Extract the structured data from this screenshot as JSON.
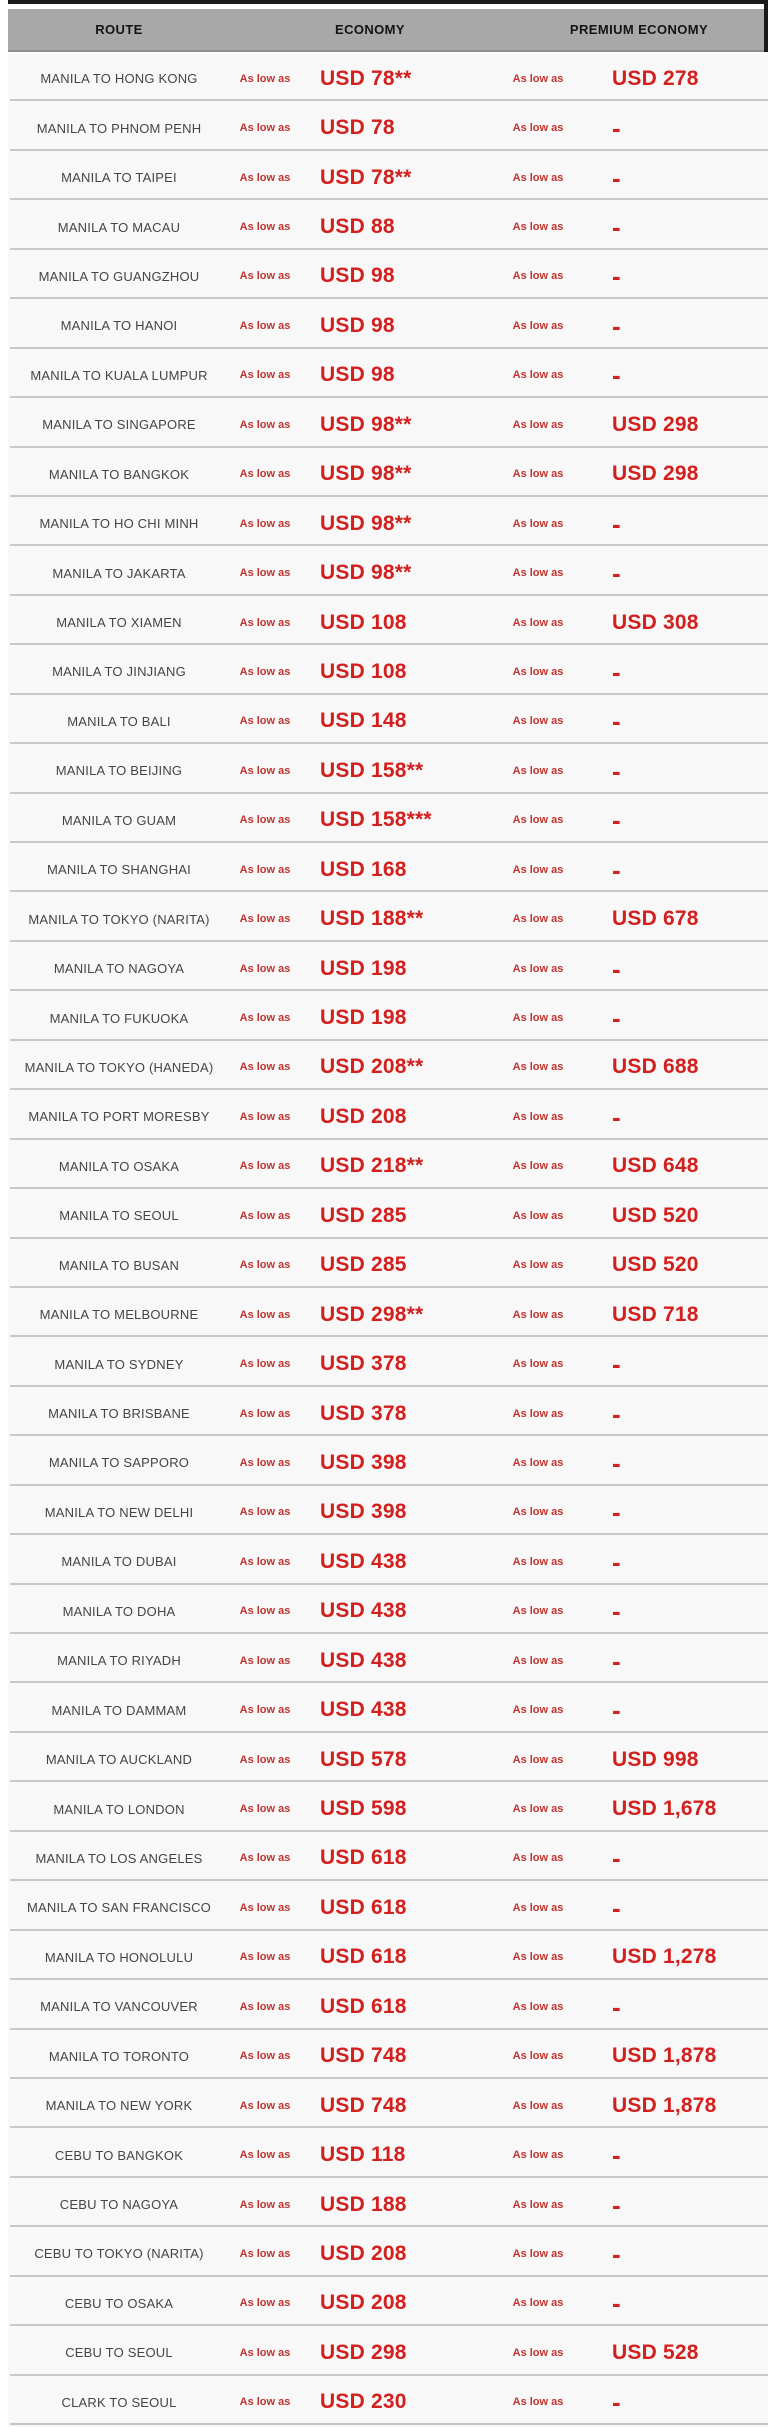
{
  "labels": {
    "as_low_as": "As low as",
    "no_fare_dash": "-"
  },
  "colors": {
    "header_background": "#a8a8a8",
    "header_text": "#141414",
    "row_background": "#f8f8f8",
    "divider": "#c8c8c8",
    "route_text": "#454545",
    "price_red": "#d2201e",
    "label_red": "#c0342f",
    "border_black": "#1a1a1a"
  },
  "table": {
    "headers": [
      "ROUTE",
      "ECONOMY",
      "PREMIUM ECONOMY"
    ],
    "rows": [
      {
        "route": "MANILA TO HONG KONG",
        "economy": "USD 78**",
        "premium": "USD 278"
      },
      {
        "route": "MANILA TO PHNOM PENH",
        "economy": "USD 78",
        "premium": "-"
      },
      {
        "route": "MANILA TO TAIPEI",
        "economy": "USD 78**",
        "premium": "-"
      },
      {
        "route": "MANILA TO MACAU",
        "economy": "USD 88",
        "premium": "-"
      },
      {
        "route": "MANILA TO GUANGZHOU",
        "economy": "USD 98",
        "premium": "-"
      },
      {
        "route": "MANILA TO HANOI",
        "economy": "USD 98",
        "premium": "-"
      },
      {
        "route": "MANILA TO KUALA LUMPUR",
        "economy": "USD 98",
        "premium": "-"
      },
      {
        "route": "MANILA TO SINGAPORE",
        "economy": "USD 98**",
        "premium": "USD 298"
      },
      {
        "route": "MANILA TO BANGKOK",
        "economy": "USD 98**",
        "premium": "USD 298"
      },
      {
        "route": "MANILA TO HO CHI MINH",
        "economy": "USD 98**",
        "premium": "-"
      },
      {
        "route": "MANILA TO JAKARTA",
        "economy": "USD 98**",
        "premium": "-"
      },
      {
        "route": "MANILA TO XIAMEN",
        "economy": "USD 108",
        "premium": "USD 308"
      },
      {
        "route": "MANILA TO JINJIANG",
        "economy": "USD 108",
        "premium": "-"
      },
      {
        "route": "MANILA TO BALI",
        "economy": "USD 148",
        "premium": "-"
      },
      {
        "route": "MANILA TO BEIJING",
        "economy": "USD 158**",
        "premium": "-"
      },
      {
        "route": "MANILA TO GUAM",
        "economy": "USD 158***",
        "premium": "-"
      },
      {
        "route": "MANILA TO SHANGHAI",
        "economy": "USD 168",
        "premium": "-"
      },
      {
        "route": "MANILA TO TOKYO (NARITA)",
        "economy": "USD 188**",
        "premium": "USD 678"
      },
      {
        "route": "MANILA TO NAGOYA",
        "economy": "USD 198",
        "premium": "-"
      },
      {
        "route": "MANILA TO FUKUOKA",
        "economy": "USD 198",
        "premium": "-"
      },
      {
        "route": "MANILA TO TOKYO (HANEDA)",
        "economy": "USD 208**",
        "premium": "USD 688"
      },
      {
        "route": "MANILA TO PORT MORESBY",
        "economy": "USD 208",
        "premium": "-"
      },
      {
        "route": "MANILA TO OSAKA",
        "economy": "USD 218**",
        "premium": "USD 648"
      },
      {
        "route": "MANILA TO SEOUL",
        "economy": "USD 285",
        "premium": "USD 520"
      },
      {
        "route": "MANILA TO BUSAN",
        "economy": "USD 285",
        "premium": "USD 520"
      },
      {
        "route": "MANILA TO MELBOURNE",
        "economy": "USD 298**",
        "premium": "USD 718"
      },
      {
        "route": "MANILA TO SYDNEY",
        "economy": "USD 378",
        "premium": "-"
      },
      {
        "route": "MANILA TO BRISBANE",
        "economy": "USD 378",
        "premium": "-"
      },
      {
        "route": "MANILA TO SAPPORO",
        "economy": "USD 398",
        "premium": "-"
      },
      {
        "route": "MANILA TO NEW DELHI",
        "economy": "USD 398",
        "premium": "-"
      },
      {
        "route": "MANILA TO DUBAI",
        "economy": "USD 438",
        "premium": "-"
      },
      {
        "route": "MANILA TO DOHA",
        "economy": "USD 438",
        "premium": "-"
      },
      {
        "route": "MANILA TO RIYADH",
        "economy": "USD 438",
        "premium": "-"
      },
      {
        "route": "MANILA TO DAMMAM",
        "economy": "USD 438",
        "premium": "-"
      },
      {
        "route": "MANILA TO AUCKLAND",
        "economy": "USD 578",
        "premium": "USD 998"
      },
      {
        "route": "MANILA TO LONDON",
        "economy": "USD 598",
        "premium": "USD 1,678"
      },
      {
        "route": "MANILA TO LOS ANGELES",
        "economy": "USD 618",
        "premium": "-"
      },
      {
        "route": "MANILA TO SAN FRANCISCO",
        "economy": "USD 618",
        "premium": "-"
      },
      {
        "route": "MANILA TO HONOLULU",
        "economy": "USD 618",
        "premium": "USD 1,278"
      },
      {
        "route": "MANILA TO VANCOUVER",
        "economy": "USD 618",
        "premium": "-"
      },
      {
        "route": "MANILA TO TORONTO",
        "economy": "USD 748",
        "premium": "USD 1,878"
      },
      {
        "route": "MANILA TO NEW YORK",
        "economy": "USD 748",
        "premium": "USD 1,878"
      },
      {
        "route": "CEBU TO BANGKOK",
        "economy": "USD 118",
        "premium": "-"
      },
      {
        "route": "CEBU TO NAGOYA",
        "economy": "USD 188",
        "premium": "-"
      },
      {
        "route": "CEBU TO TOKYO (NARITA)",
        "economy": "USD 208",
        "premium": "-"
      },
      {
        "route": "CEBU TO OSAKA",
        "economy": "USD 208",
        "premium": "-"
      },
      {
        "route": "CEBU TO SEOUL",
        "economy": "USD 298",
        "premium": "USD 528"
      },
      {
        "route": "CLARK TO SEOUL",
        "economy": "USD 230",
        "premium": "-"
      }
    ]
  }
}
